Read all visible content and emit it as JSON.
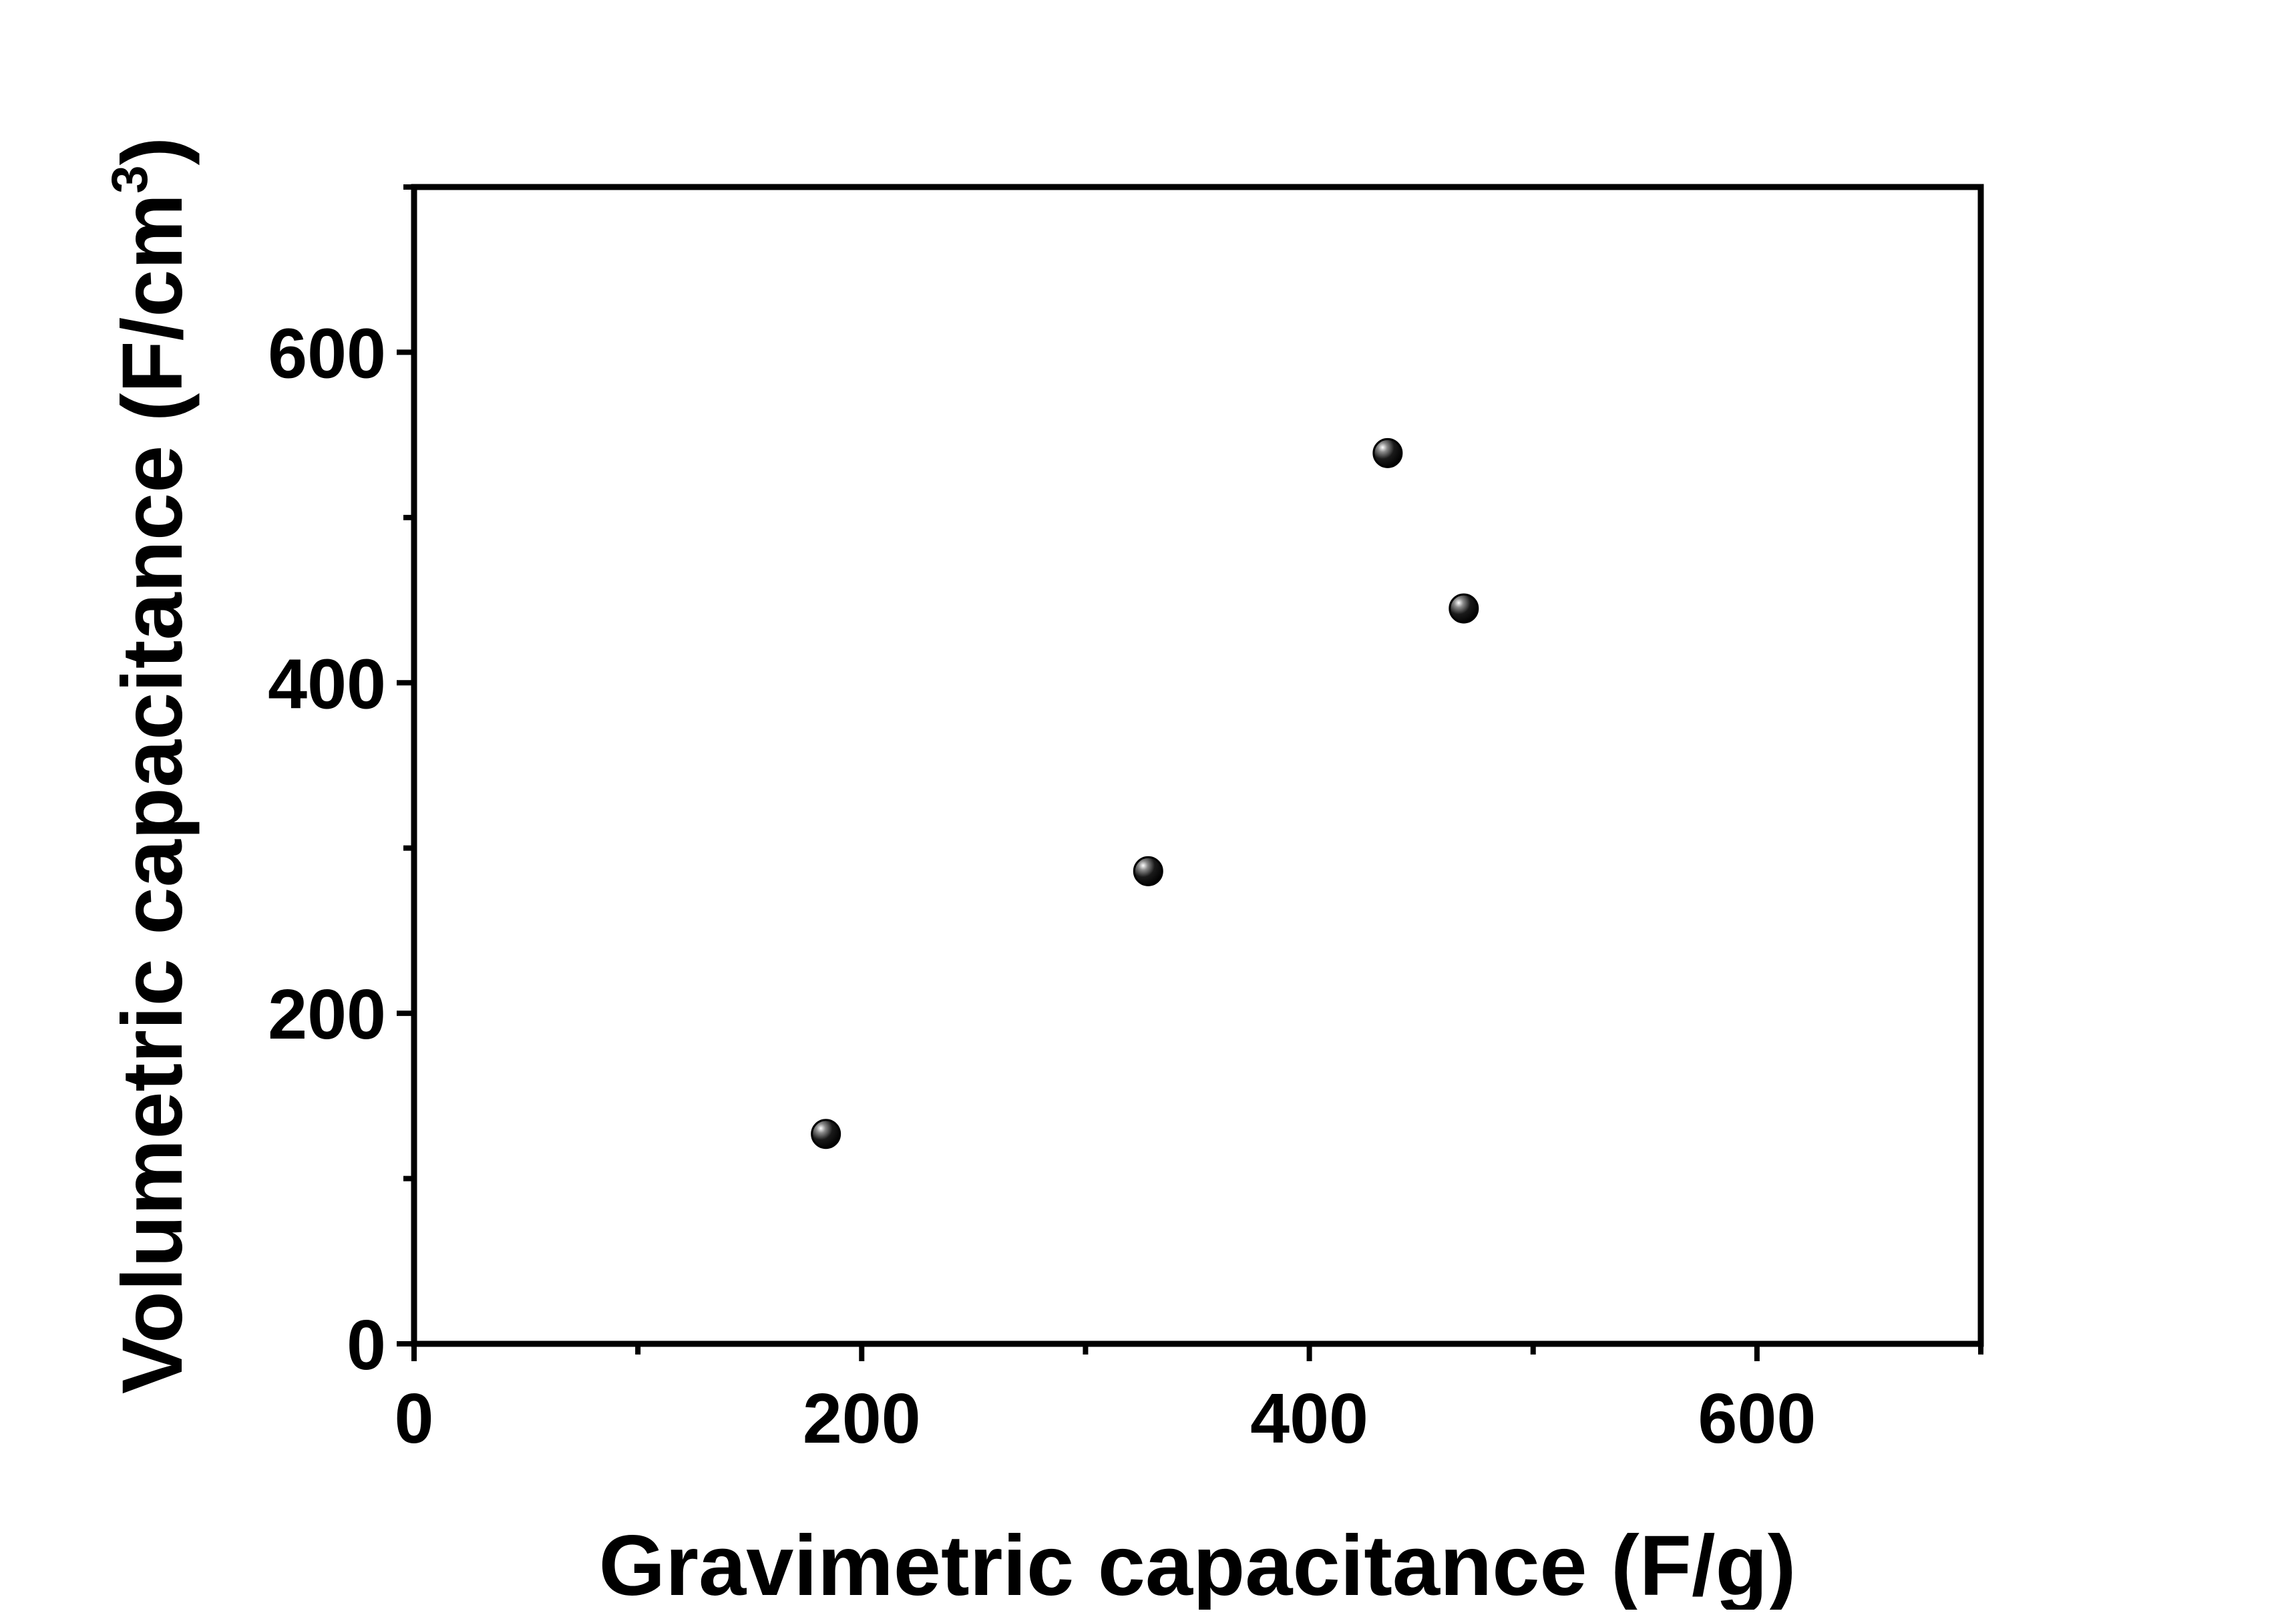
{
  "chart_data": {
    "type": "scatter",
    "title": "",
    "xlabel": "Gravimetric capacitance (F/g)",
    "ylabel": {
      "before": "Volumetric capacitance (F/cm",
      "superscript": "3",
      "after": ")"
    },
    "xlim": [
      0,
      700
    ],
    "ylim": [
      0,
      700
    ],
    "x_ticks": [
      0,
      200,
      400,
      600
    ],
    "x_minor_ticks": [
      100,
      300,
      500,
      700
    ],
    "y_ticks": [
      0,
      200,
      400,
      600
    ],
    "y_minor_ticks": [
      100,
      300,
      500,
      700
    ],
    "grid": false,
    "legend": "none",
    "marker_color": "#000000",
    "series": [
      {
        "x": [
          184,
          328,
          435,
          469
        ],
        "y": [
          127,
          286,
          539,
          445
        ]
      }
    ]
  }
}
